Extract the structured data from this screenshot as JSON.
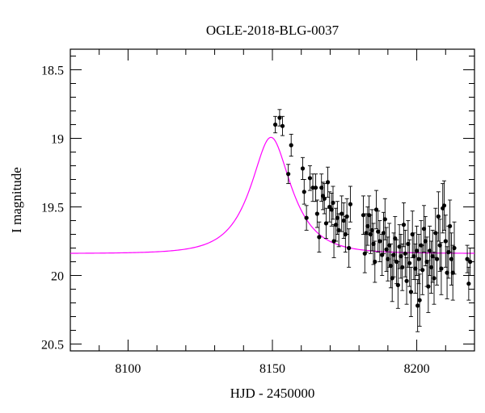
{
  "chart_data": {
    "type": "scatter",
    "title": "OGLE-2018-BLG-0037",
    "xlabel": "HJD - 2450000",
    "ylabel": "I magnitude",
    "xlim": [
      8080,
      8220
    ],
    "ylim": [
      20.55,
      18.35
    ],
    "y_inverted": true,
    "grid": false,
    "x_ticks": [
      {
        "value": 8100,
        "label": "8100"
      },
      {
        "value": 8150,
        "label": "8150"
      },
      {
        "value": 8200,
        "label": "8200"
      }
    ],
    "y_ticks": [
      {
        "value": 18.5,
        "label": "18.5"
      },
      {
        "value": 19,
        "label": "19"
      },
      {
        "value": 19.5,
        "label": "19.5"
      },
      {
        "value": 20,
        "label": "20"
      },
      {
        "value": 20.5,
        "label": "20.5"
      }
    ],
    "colors": {
      "data": "#000000",
      "model": "#ff00ff"
    },
    "series": [
      {
        "kind": "points_with_errorbars",
        "points": [
          [
            8151.0,
            18.9,
            0.06
          ],
          [
            8152.5,
            18.85,
            0.06
          ],
          [
            8153.5,
            18.91,
            0.07
          ],
          [
            8155.5,
            19.26,
            0.07
          ],
          [
            8156.5,
            19.05,
            0.08
          ],
          [
            8160.5,
            19.22,
            0.08
          ],
          [
            8161.0,
            19.39,
            0.09
          ],
          [
            8161.8,
            19.58,
            0.09
          ],
          [
            8163.0,
            19.29,
            0.09
          ],
          [
            8164.0,
            19.36,
            0.1
          ],
          [
            8165.0,
            19.36,
            0.1
          ],
          [
            8165.5,
            19.55,
            0.1
          ],
          [
            8166.2,
            19.72,
            0.11
          ],
          [
            8167.0,
            19.36,
            0.1
          ],
          [
            8167.5,
            19.42,
            0.1
          ],
          [
            8168.0,
            19.44,
            0.11
          ],
          [
            8168.6,
            19.62,
            0.11
          ],
          [
            8169.2,
            19.32,
            0.11
          ],
          [
            8169.8,
            19.5,
            0.11
          ],
          [
            8170.5,
            19.52,
            0.12
          ],
          [
            8171.0,
            19.47,
            0.12
          ],
          [
            8171.3,
            19.75,
            0.12
          ],
          [
            8172.0,
            19.63,
            0.12
          ],
          [
            8172.5,
            19.58,
            0.12
          ],
          [
            8173.0,
            19.67,
            0.12
          ],
          [
            8174.0,
            19.55,
            0.13
          ],
          [
            8174.7,
            19.6,
            0.13
          ],
          [
            8175.3,
            19.7,
            0.13
          ],
          [
            8175.8,
            19.57,
            0.13
          ],
          [
            8176.5,
            19.8,
            0.14
          ],
          [
            8177.0,
            19.48,
            0.13
          ],
          [
            8181.5,
            19.56,
            0.14
          ],
          [
            8182.0,
            19.84,
            0.14
          ],
          [
            8182.5,
            19.69,
            0.14
          ],
          [
            8183.0,
            19.64,
            0.14
          ],
          [
            8183.5,
            19.56,
            0.14
          ],
          [
            8184.0,
            19.7,
            0.14
          ],
          [
            8184.5,
            19.67,
            0.15
          ],
          [
            8185.0,
            19.77,
            0.15
          ],
          [
            8185.5,
            19.9,
            0.15
          ],
          [
            8186.0,
            19.52,
            0.14
          ],
          [
            8186.6,
            19.68,
            0.15
          ],
          [
            8187.2,
            19.75,
            0.15
          ],
          [
            8188.0,
            19.85,
            0.15
          ],
          [
            8188.5,
            19.69,
            0.15
          ],
          [
            8189.0,
            19.59,
            0.15
          ],
          [
            8189.5,
            19.81,
            0.16
          ],
          [
            8190.0,
            19.88,
            0.16
          ],
          [
            8190.5,
            19.78,
            0.16
          ],
          [
            8191.0,
            19.93,
            0.16
          ],
          [
            8191.5,
            20.02,
            0.17
          ],
          [
            8192.0,
            19.85,
            0.16
          ],
          [
            8192.5,
            19.73,
            0.16
          ],
          [
            8193.0,
            19.9,
            0.16
          ],
          [
            8193.5,
            20.07,
            0.17
          ],
          [
            8194.0,
            19.79,
            0.16
          ],
          [
            8194.5,
            19.86,
            0.16
          ],
          [
            8195.0,
            19.94,
            0.17
          ],
          [
            8195.5,
            19.63,
            0.16
          ],
          [
            8196.0,
            19.84,
            0.17
          ],
          [
            8196.5,
            20.04,
            0.17
          ],
          [
            8197.0,
            19.77,
            0.17
          ],
          [
            8197.5,
            19.91,
            0.17
          ],
          [
            8198.0,
            20.12,
            0.18
          ],
          [
            8198.5,
            19.7,
            0.17
          ],
          [
            8199.0,
            19.86,
            0.17
          ],
          [
            8199.5,
            19.95,
            0.18
          ],
          [
            8200.0,
            19.82,
            0.18
          ],
          [
            8200.3,
            20.22,
            0.19
          ],
          [
            8200.7,
            19.88,
            0.18
          ],
          [
            8201.0,
            20.18,
            0.19
          ],
          [
            8201.5,
            19.78,
            0.18
          ],
          [
            8202.0,
            19.96,
            0.18
          ],
          [
            8202.5,
            19.66,
            0.17
          ],
          [
            8203.0,
            19.75,
            0.18
          ],
          [
            8203.5,
            19.9,
            0.18
          ],
          [
            8204.0,
            20.08,
            0.19
          ],
          [
            8204.5,
            19.82,
            0.18
          ],
          [
            8205.0,
            19.94,
            0.19
          ],
          [
            8205.5,
            19.86,
            0.19
          ],
          [
            8206.0,
            20.02,
            0.19
          ],
          [
            8206.5,
            19.69,
            0.18
          ],
          [
            8207.0,
            19.88,
            0.19
          ],
          [
            8207.5,
            19.57,
            0.18
          ],
          [
            8208.0,
            19.78,
            0.19
          ],
          [
            8208.5,
            19.95,
            0.19
          ],
          [
            8209.0,
            19.51,
            0.18
          ],
          [
            8209.5,
            19.49,
            0.18
          ],
          [
            8210.0,
            19.75,
            0.19
          ],
          [
            8210.5,
            19.98,
            0.19
          ],
          [
            8211.0,
            19.83,
            0.19
          ],
          [
            8211.5,
            19.64,
            0.19
          ],
          [
            8212.0,
            19.88,
            0.19
          ],
          [
            8212.5,
            19.98,
            0.2
          ],
          [
            8213.0,
            19.8,
            0.19
          ],
          [
            8217.5,
            19.88,
            0.1
          ],
          [
            8218.0,
            20.06,
            0.12
          ],
          [
            8218.5,
            19.9,
            0.1
          ]
        ]
      },
      {
        "kind": "model_curve",
        "u0": 0.5,
        "t0": 8149.5,
        "tE": 12,
        "baseline_mag": 19.84,
        "x_step": 0.5
      }
    ]
  }
}
